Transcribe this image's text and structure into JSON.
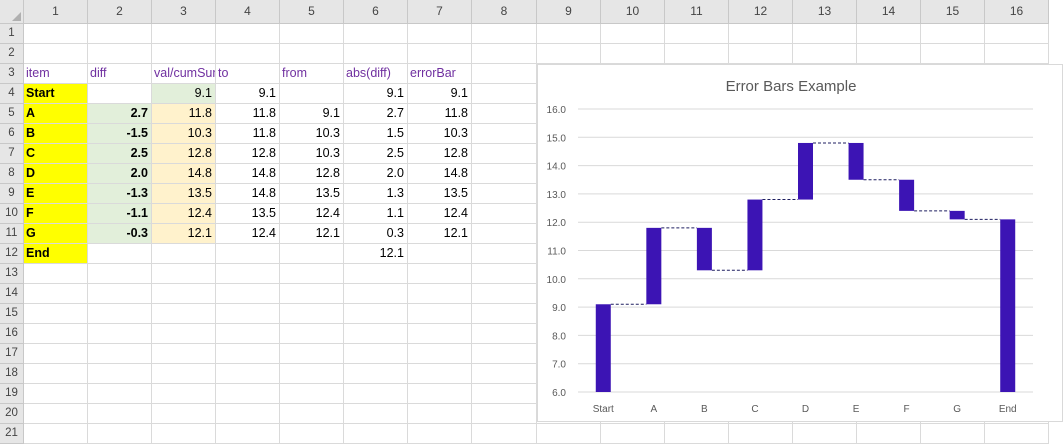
{
  "sheet": {
    "column_headers": [
      "1",
      "2",
      "3",
      "4",
      "5",
      "6",
      "7",
      "8",
      "9",
      "10",
      "11",
      "12",
      "13",
      "14",
      "15",
      "16"
    ],
    "row_headers": [
      "1",
      "2",
      "3",
      "4",
      "5",
      "6",
      "7",
      "8",
      "9",
      "10",
      "11",
      "12",
      "13",
      "14",
      "15",
      "16",
      "17",
      "18",
      "19",
      "20",
      "21"
    ],
    "table_headers": [
      "item",
      "diff",
      "val/cumSum",
      "to",
      "from",
      "abs(diff)",
      "errorBar"
    ],
    "rows": [
      {
        "item": "Start",
        "diff": "",
        "val": "9.1",
        "to": "9.1",
        "from": "",
        "abs": "9.1",
        "err": "9.1"
      },
      {
        "item": "A",
        "diff": "2.7",
        "val": "11.8",
        "to": "11.8",
        "from": "9.1",
        "abs": "2.7",
        "err": "11.8"
      },
      {
        "item": "B",
        "diff": "-1.5",
        "val": "10.3",
        "to": "11.8",
        "from": "10.3",
        "abs": "1.5",
        "err": "10.3"
      },
      {
        "item": "C",
        "diff": "2.5",
        "val": "12.8",
        "to": "12.8",
        "from": "10.3",
        "abs": "2.5",
        "err": "12.8"
      },
      {
        "item": "D",
        "diff": "2.0",
        "val": "14.8",
        "to": "14.8",
        "from": "12.8",
        "abs": "2.0",
        "err": "14.8"
      },
      {
        "item": "E",
        "diff": "-1.3",
        "val": "13.5",
        "to": "14.8",
        "from": "13.5",
        "abs": "1.3",
        "err": "13.5"
      },
      {
        "item": "F",
        "diff": "-1.1",
        "val": "12.4",
        "to": "13.5",
        "from": "12.4",
        "abs": "1.1",
        "err": "12.4"
      },
      {
        "item": "G",
        "diff": "-0.3",
        "val": "12.1",
        "to": "12.4",
        "from": "12.1",
        "abs": "0.3",
        "err": "12.1"
      },
      {
        "item": "End",
        "diff": "",
        "val": "",
        "to": "",
        "from": "",
        "abs": "12.1",
        "err": ""
      }
    ]
  },
  "colors": {
    "item_fill": "#ffff00",
    "diff_fill": "#e2efda",
    "val_fill": "#fff2cc",
    "header_text": "#7030a0",
    "bar": "#3c14b4",
    "connector": "#1f1f60"
  },
  "chart_data": {
    "type": "bar",
    "title": "Error Bars Example",
    "categories": [
      "Start",
      "A",
      "B",
      "C",
      "D",
      "E",
      "F",
      "G",
      "End"
    ],
    "series": [
      {
        "values_from": [
          6.0,
          9.1,
          10.3,
          10.3,
          12.8,
          13.5,
          12.4,
          12.1,
          6.0
        ],
        "values_to": [
          9.1,
          11.8,
          11.8,
          12.8,
          14.8,
          14.8,
          13.5,
          12.4,
          12.1
        ]
      }
    ],
    "connectors": [
      9.1,
      11.8,
      10.3,
      12.8,
      14.8,
      13.5,
      12.4,
      12.1
    ],
    "ylim": [
      6.0,
      16.0
    ],
    "y_ticks": [
      "6.0",
      "7.0",
      "8.0",
      "9.0",
      "10.0",
      "11.0",
      "12.0",
      "13.0",
      "14.0",
      "15.0",
      "16.0"
    ],
    "grid": true,
    "legend": "none"
  }
}
